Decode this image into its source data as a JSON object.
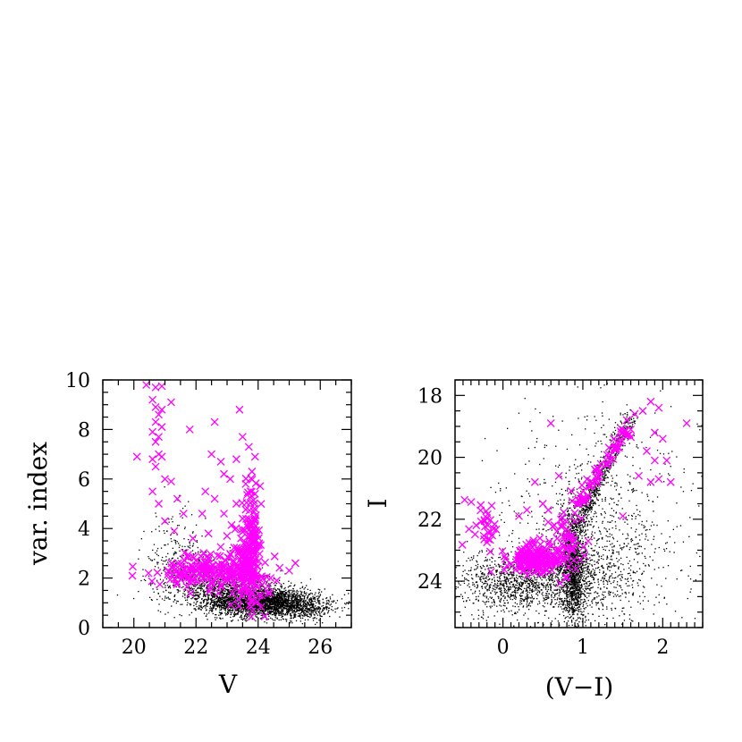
{
  "colors": {
    "field": "#000000",
    "variable": "#ff00ff",
    "background": "#ffffff"
  },
  "chart_data": [
    {
      "id": "left",
      "type": "scatter",
      "xlabel": "V",
      "ylabel": "var. index",
      "xlim": [
        19,
        27
      ],
      "ylim": [
        0,
        10
      ],
      "xticks": [
        20,
        22,
        24,
        26
      ],
      "yticks": [
        0,
        2,
        4,
        6,
        8,
        10
      ],
      "series": [
        {
          "marker": "dot",
          "color": "#000000",
          "clusters": [
            {
              "cx": 24.2,
              "cy": 1.0,
              "sx": 0.9,
              "sy": 0.28,
              "n": 2600
            },
            {
              "cx": 23.0,
              "cy": 1.5,
              "sx": 0.9,
              "sy": 0.35,
              "n": 900
            },
            {
              "cx": 22.0,
              "cy": 2.2,
              "sx": 0.7,
              "sy": 0.6,
              "n": 300
            },
            {
              "cx": 21.3,
              "cy": 3.2,
              "sx": 0.5,
              "sy": 0.9,
              "n": 110
            },
            {
              "cx": 25.6,
              "cy": 0.7,
              "sx": 0.4,
              "sy": 0.2,
              "n": 220
            }
          ]
        },
        {
          "marker": "x",
          "color": "#ff00ff",
          "points": [
            [
              20.4,
              9.8
            ],
            [
              20.7,
              9.7
            ],
            [
              20.9,
              9.75
            ],
            [
              20.6,
              9.2
            ],
            [
              20.7,
              8.9
            ],
            [
              20.9,
              8.8
            ],
            [
              20.8,
              8.6
            ],
            [
              20.7,
              8.3
            ],
            [
              20.9,
              8.1
            ],
            [
              20.6,
              7.9
            ],
            [
              20.8,
              7.7
            ],
            [
              20.7,
              7.5
            ],
            [
              20.8,
              7.0
            ],
            [
              20.6,
              6.8
            ],
            [
              20.9,
              6.9
            ],
            [
              20.7,
              6.5
            ],
            [
              21.0,
              6.0
            ],
            [
              21.2,
              5.9
            ],
            [
              20.6,
              5.5
            ],
            [
              21.4,
              5.2
            ],
            [
              20.8,
              5.0
            ],
            [
              21.6,
              4.6
            ],
            [
              21.0,
              4.3
            ],
            [
              21.3,
              3.9
            ],
            [
              20.1,
              6.9
            ],
            [
              21.2,
              9.1
            ],
            [
              21.8,
              8.0
            ],
            [
              22.6,
              8.3
            ],
            [
              23.4,
              8.8
            ],
            [
              23.5,
              7.7
            ],
            [
              22.5,
              7.0
            ],
            [
              22.8,
              6.7
            ],
            [
              23.3,
              6.8
            ],
            [
              22.9,
              6.2
            ],
            [
              23.1,
              6.0
            ],
            [
              23.8,
              6.3
            ],
            [
              23.9,
              6.9
            ],
            [
              23.7,
              7.3
            ],
            [
              22.3,
              5.5
            ],
            [
              22.6,
              5.2
            ],
            [
              23.6,
              5.8
            ],
            [
              23.9,
              5.4
            ],
            [
              23.3,
              5.0
            ],
            [
              22.2,
              4.6
            ],
            [
              22.9,
              4.6
            ],
            [
              23.5,
              4.4
            ],
            [
              25.2,
              2.6
            ],
            [
              25.0,
              2.3
            ],
            [
              24.4,
              2.0
            ],
            [
              24.6,
              1.9
            ],
            [
              21.9,
              3.6
            ],
            [
              22.4,
              3.8
            ],
            [
              23.0,
              3.7
            ]
          ],
          "clusters": [
            {
              "cx": 23.7,
              "cy": 2.7,
              "sx": 0.22,
              "sy": 0.9,
              "n": 160
            },
            {
              "cx": 22.6,
              "cy": 2.35,
              "sx": 0.9,
              "sy": 0.35,
              "n": 200
            },
            {
              "cx": 23.8,
              "cy": 4.8,
              "sx": 0.12,
              "sy": 0.8,
              "n": 30
            }
          ]
        }
      ]
    },
    {
      "id": "right",
      "type": "scatter",
      "xlabel": "(V−I)",
      "ylabel": "I",
      "xlim": [
        -0.6,
        2.5
      ],
      "ylim": [
        25.5,
        17.5
      ],
      "xticks": [
        0,
        1,
        2
      ],
      "yticks": [
        18,
        20,
        22,
        24
      ],
      "series": [
        {
          "marker": "dot",
          "color": "#000000",
          "clusters": [
            {
              "cx": 0.88,
              "cy": 23.6,
              "sx": 0.07,
              "sy": 0.9,
              "n": 1300
            },
            {
              "cx": 0.6,
              "cy": 24.0,
              "sx": 0.55,
              "sy": 0.5,
              "n": 1000
            },
            {
              "cx": 0.1,
              "cy": 24.1,
              "sx": 0.3,
              "sy": 0.5,
              "n": 500
            },
            {
              "cx": 1.2,
              "cy": 23.0,
              "sx": 0.4,
              "sy": 1.2,
              "n": 450
            },
            {
              "cx": 0.9,
              "cy": 22.0,
              "sx": 0.6,
              "sy": 1.8,
              "n": 350
            },
            {
              "cx": 1.6,
              "cy": 21.5,
              "sx": 0.6,
              "sy": 2.2,
              "n": 200
            }
          ],
          "branch": {
            "x0": 0.9,
            "y0": 22.4,
            "x1": 1.6,
            "y1": 18.6,
            "n": 650,
            "sx": 0.05
          }
        },
        {
          "marker": "x",
          "color": "#ff00ff",
          "points": [
            [
              1.55,
              18.8
            ],
            [
              1.65,
              18.6
            ],
            [
              1.75,
              18.5
            ],
            [
              1.85,
              18.2
            ],
            [
              1.95,
              18.4
            ],
            [
              1.9,
              19.2
            ],
            [
              2.0,
              19.4
            ],
            [
              1.8,
              19.8
            ],
            [
              1.7,
              20.6
            ],
            [
              1.9,
              20.1
            ],
            [
              2.05,
              20.1
            ],
            [
              1.95,
              20.7
            ],
            [
              2.1,
              20.8
            ],
            [
              1.85,
              20.8
            ],
            [
              2.3,
              18.9
            ],
            [
              1.5,
              21.9
            ],
            [
              1.6,
              19.1
            ],
            [
              0.6,
              18.9
            ],
            [
              0.7,
              20.6
            ],
            [
              0.5,
              21.5
            ],
            [
              0.3,
              21.7
            ],
            [
              0.2,
              21.9
            ],
            [
              0.4,
              20.8
            ],
            [
              0.9,
              21.8
            ],
            [
              0.75,
              22.1
            ],
            [
              -0.15,
              23.7
            ],
            [
              0.05,
              23.5
            ],
            [
              0.2,
              23.3
            ]
          ],
          "clusters": [
            {
              "cx": -0.2,
              "cy": 22.2,
              "sx": 0.1,
              "sy": 0.45,
              "n": 30
            },
            {
              "cx": 0.42,
              "cy": 23.3,
              "sx": 0.17,
              "sy": 0.22,
              "n": 150
            },
            {
              "cx": 0.78,
              "cy": 22.6,
              "sx": 0.12,
              "sy": 0.6,
              "n": 55
            }
          ],
          "branch": {
            "x0": 0.95,
            "y0": 21.5,
            "x1": 1.55,
            "y1": 19.1,
            "n": 60,
            "sx": 0.04
          }
        }
      ]
    }
  ]
}
